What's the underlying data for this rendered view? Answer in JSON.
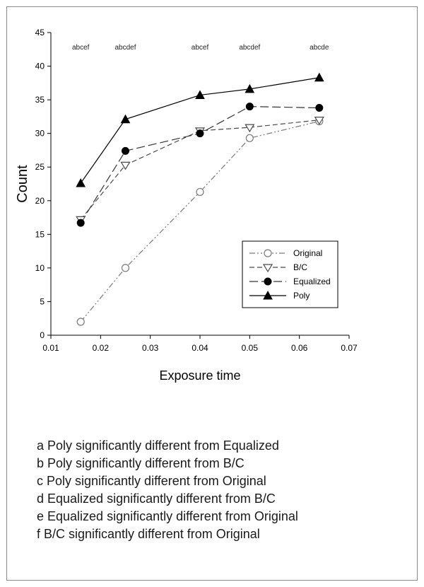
{
  "chart_data": {
    "type": "line",
    "xlabel": "Exposure time",
    "ylabel": "Count",
    "xlim": [
      0.01,
      0.07
    ],
    "ylim": [
      0,
      45
    ],
    "xticks": [
      "0.01",
      "0.02",
      "0.03",
      "0.04",
      "0.05",
      "0.06",
      "0.07"
    ],
    "yticks": [
      "0",
      "5",
      "10",
      "15",
      "20",
      "25",
      "30",
      "35",
      "40",
      "45"
    ],
    "x": [
      0.016,
      0.025,
      0.04,
      0.05,
      0.064
    ],
    "series": [
      {
        "name": "Original",
        "values": [
          2.0,
          10.0,
          21.3,
          29.3,
          31.8
        ],
        "marker": "open-circle",
        "dash": "dash-dot-dot",
        "color": "#7a7a7a"
      },
      {
        "name": "B/C",
        "values": [
          17.2,
          25.3,
          30.4,
          30.9,
          32.0
        ],
        "marker": "open-triangle-down",
        "dash": "dash",
        "color": "#4a4a4a"
      },
      {
        "name": "Equalized",
        "values": [
          16.7,
          27.4,
          30.0,
          34.0,
          33.8
        ],
        "marker": "filled-circle",
        "dash": "long-dash",
        "color": "#333333"
      },
      {
        "name": "Poly",
        "values": [
          22.6,
          32.1,
          35.7,
          36.6,
          38.3
        ],
        "marker": "filled-triangle-up",
        "dash": "solid",
        "color": "#000000"
      }
    ],
    "annotations": [
      {
        "x": 0.016,
        "text": "abcef"
      },
      {
        "x": 0.025,
        "text": "abcdef"
      },
      {
        "x": 0.04,
        "text": "abcef"
      },
      {
        "x": 0.05,
        "text": "abcdef"
      },
      {
        "x": 0.064,
        "text": "abcde"
      }
    ],
    "legend_position": "right, lower middle",
    "grid": false
  },
  "notes": [
    "a Poly significantly different from Equalized",
    "b Poly significantly different from B/C",
    "c Poly significantly different from Original",
    "d Equalized significantly different from B/C",
    "e Equalized significantly different from Original",
    "f B/C significantly different from Original"
  ]
}
